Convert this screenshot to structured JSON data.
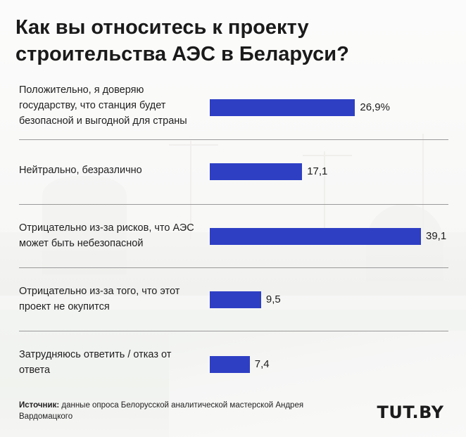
{
  "title": "Как вы относитесь к проекту строительства АЭС в Беларуси?",
  "chart_data": {
    "type": "bar",
    "orientation": "horizontal",
    "title": "Как вы относитесь к проекту строительства АЭС в Беларуси?",
    "categories": [
      "Положительно, я доверяю государству, что станция будет безопасной и выгодной для страны",
      "Нейтрально, безразлично",
      "Отрицательно из-за рисков, что АЭС может быть небезопасной",
      "Отрицательно из-за того, что этот проект не окупится",
      "Затрудняюсь ответить / отказ от ответа"
    ],
    "values": [
      26.9,
      17.1,
      39.1,
      9.5,
      7.4
    ],
    "value_labels": [
      "26,9%",
      "17,1",
      "39,1",
      "9,5",
      "7,4"
    ],
    "bar_color": "#2e3fc4",
    "grid": false,
    "legend": "none"
  },
  "source": {
    "label": "Источник:",
    "text": " данные опроса Белорусской аналитической мастерской Андрея Вардомацкого"
  },
  "logo": "TUT.BY"
}
